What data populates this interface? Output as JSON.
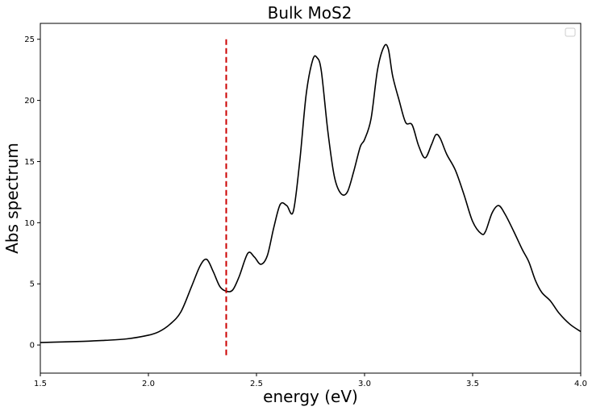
{
  "chart_data": {
    "type": "line",
    "title": "Bulk MoS2",
    "xlabel": "energy (eV)",
    "ylabel": "Abs spectrum",
    "xlim": [
      1.5,
      4.0
    ],
    "ylim": [
      -2.3,
      26.3
    ],
    "xticks": [
      "1.5",
      "2.0",
      "2.5",
      "3.0",
      "3.5",
      "4.0"
    ],
    "yticks": [
      "0",
      "5",
      "10",
      "15",
      "20",
      "25"
    ],
    "grid": false,
    "legend": "upper right (empty)",
    "series": [
      {
        "color": "#000000",
        "style": "solid",
        "x": [
          1.5,
          1.6,
          1.7,
          1.8,
          1.9,
          2.0,
          2.05,
          2.1,
          2.15,
          2.2,
          2.24,
          2.27,
          2.3,
          2.33,
          2.36,
          2.39,
          2.42,
          2.46,
          2.49,
          2.52,
          2.55,
          2.58,
          2.61,
          2.64,
          2.67,
          2.7,
          2.73,
          2.76,
          2.78,
          2.8,
          2.83,
          2.86,
          2.89,
          2.92,
          2.95,
          2.98,
          3.0,
          3.03,
          3.06,
          3.09,
          3.11,
          3.13,
          3.16,
          3.19,
          3.22,
          3.25,
          3.28,
          3.31,
          3.33,
          3.35,
          3.38,
          3.42,
          3.46,
          3.5,
          3.54,
          3.56,
          3.59,
          3.62,
          3.65,
          3.69,
          3.73,
          3.76,
          3.79,
          3.82,
          3.86,
          3.9,
          3.95,
          4.0
        ],
        "y": [
          0.2,
          0.25,
          0.3,
          0.38,
          0.5,
          0.8,
          1.1,
          1.7,
          2.7,
          4.8,
          6.5,
          7.0,
          6.0,
          4.8,
          4.4,
          4.5,
          5.6,
          7.5,
          7.2,
          6.6,
          7.3,
          9.6,
          11.5,
          11.4,
          10.9,
          15.0,
          20.5,
          23.3,
          23.5,
          22.4,
          17.5,
          13.8,
          12.4,
          12.5,
          14.2,
          16.2,
          16.8,
          18.5,
          22.5,
          24.4,
          24.2,
          22.0,
          20.0,
          18.2,
          18.0,
          16.3,
          15.3,
          16.4,
          17.2,
          16.9,
          15.6,
          14.3,
          12.3,
          10.1,
          9.1,
          9.3,
          10.8,
          11.4,
          10.7,
          9.3,
          7.8,
          6.8,
          5.3,
          4.3,
          3.6,
          2.6,
          1.7,
          1.1
        ]
      }
    ],
    "vline": {
      "x": 2.36,
      "y_range": [
        -0.9,
        25.0
      ],
      "color": "#cc0000",
      "style": "dashed"
    }
  }
}
